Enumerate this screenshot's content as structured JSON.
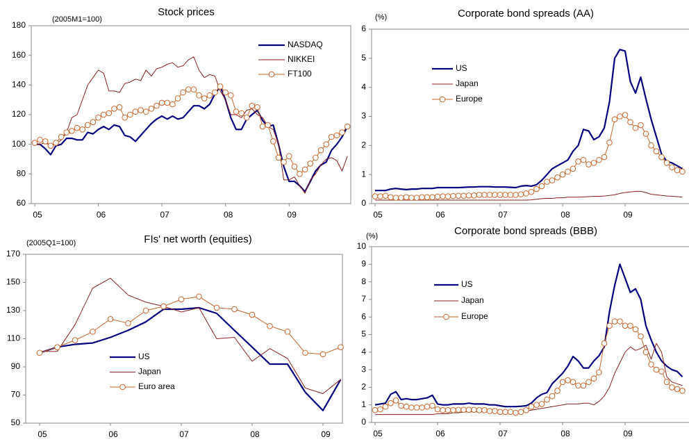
{
  "chart_data": [
    {
      "type": "line",
      "title": "Stock prices",
      "unit_note": "(2005M1=100)",
      "categories": [
        "05",
        null,
        null,
        null,
        null,
        null,
        null,
        null,
        null,
        null,
        null,
        null,
        "06",
        null,
        null,
        null,
        null,
        null,
        null,
        null,
        null,
        null,
        null,
        null,
        "07",
        null,
        null,
        null,
        null,
        null,
        null,
        null,
        null,
        null,
        null,
        null,
        "08",
        null,
        null,
        null,
        null,
        null,
        null,
        null,
        null,
        null,
        null,
        null,
        "09",
        null,
        null,
        null,
        null,
        null,
        null,
        null,
        null,
        null,
        null,
        null
      ],
      "ylim": [
        60,
        180
      ],
      "yticks": [
        60,
        80,
        100,
        120,
        140,
        160,
        180
      ],
      "series": [
        {
          "name": "NASDAQ",
          "color": "#00007f",
          "width": 2.2,
          "marker": "none",
          "values": [
            100,
            100,
            97,
            93,
            99,
            100,
            104,
            104,
            103,
            103,
            108,
            107,
            110,
            112,
            110,
            113,
            112,
            106,
            105,
            102,
            106,
            110,
            114,
            117,
            119,
            117,
            119,
            117,
            118,
            122,
            126,
            126,
            124,
            127,
            134,
            139,
            130,
            118,
            110,
            110,
            117,
            120,
            123,
            116,
            112,
            113,
            100,
            85,
            75,
            75,
            72,
            68,
            75,
            82,
            86,
            88,
            96,
            100,
            105,
            112
          ]
        },
        {
          "name": "NIKKEI",
          "color": "#8b1f1f",
          "width": 1,
          "marker": "none",
          "values": [
            100,
            100,
            101,
            99,
            100,
            103,
            108,
            118,
            120,
            130,
            140,
            145,
            150,
            148,
            136,
            136,
            135,
            141,
            142,
            144,
            143,
            150,
            146,
            151,
            152,
            154,
            155,
            152,
            153,
            157,
            159,
            150,
            145,
            147,
            146,
            136,
            130,
            120,
            120,
            118,
            123,
            124,
            120,
            118,
            112,
            110,
            100,
            76,
            76,
            78,
            72,
            67,
            76,
            80,
            86,
            90,
            91,
            89,
            82,
            92
          ]
        },
        {
          "name": "FT100",
          "color": "#c8642a",
          "width": 1,
          "marker": "circle",
          "values": [
            101,
            103,
            102,
            99,
            101,
            105,
            108,
            109,
            111,
            110,
            113,
            115,
            118,
            120,
            121,
            124,
            125,
            118,
            120,
            122,
            123,
            122,
            124,
            126,
            128,
            128,
            127,
            131,
            135,
            137,
            137,
            133,
            131,
            133,
            135,
            139,
            135,
            133,
            122,
            121,
            118,
            126,
            125,
            112,
            113,
            102,
            91,
            88,
            92,
            85,
            80,
            83,
            87,
            91,
            96,
            100,
            105,
            106,
            108,
            112
          ]
        }
      ]
    },
    {
      "type": "line",
      "title": "Corporate bond spreads (AA)",
      "unit_note": "(%)",
      "categories": [
        "05",
        null,
        null,
        null,
        null,
        null,
        null,
        null,
        null,
        null,
        null,
        null,
        "06",
        null,
        null,
        null,
        null,
        null,
        null,
        null,
        null,
        null,
        null,
        null,
        "07",
        null,
        null,
        null,
        null,
        null,
        null,
        null,
        null,
        null,
        null,
        null,
        "08",
        null,
        null,
        null,
        null,
        null,
        null,
        null,
        null,
        null,
        null,
        null,
        "09",
        null,
        null,
        null,
        null,
        null,
        null,
        null,
        null,
        null,
        null,
        null
      ],
      "ylim": [
        0,
        6
      ],
      "yticks": [
        0,
        1,
        2,
        3,
        4,
        5,
        6
      ],
      "series": [
        {
          "name": "US",
          "color": "#00007f",
          "width": 2.2,
          "marker": "none",
          "values": [
            0.45,
            0.45,
            0.45,
            0.5,
            0.52,
            0.5,
            0.48,
            0.5,
            0.5,
            0.52,
            0.52,
            0.52,
            0.55,
            0.55,
            0.55,
            0.55,
            0.55,
            0.56,
            0.57,
            0.57,
            0.58,
            0.58,
            0.58,
            0.57,
            0.57,
            0.57,
            0.56,
            0.55,
            0.6,
            0.62,
            0.6,
            0.65,
            0.8,
            1.0,
            1.2,
            1.3,
            1.4,
            1.5,
            1.8,
            2.0,
            2.55,
            2.5,
            2.2,
            2.3,
            2.6,
            3.5,
            5.0,
            5.3,
            5.25,
            4.2,
            3.8,
            4.35,
            3.6,
            2.9,
            2.3,
            1.7,
            1.45,
            1.4,
            1.3,
            1.2
          ]
        },
        {
          "name": "Japan",
          "color": "#8b1f1f",
          "width": 1,
          "marker": "none",
          "values": [
            0.12,
            0.12,
            0.12,
            0.12,
            0.12,
            0.12,
            0.12,
            0.12,
            0.12,
            0.12,
            0.12,
            0.12,
            0.12,
            0.12,
            0.12,
            0.12,
            0.12,
            0.12,
            0.12,
            0.12,
            0.12,
            0.12,
            0.12,
            0.12,
            0.12,
            0.12,
            0.12,
            0.12,
            0.12,
            0.12,
            0.13,
            0.15,
            0.17,
            0.18,
            0.18,
            0.2,
            0.2,
            0.22,
            0.22,
            0.22,
            0.23,
            0.24,
            0.25,
            0.25,
            0.26,
            0.28,
            0.3,
            0.35,
            0.38,
            0.4,
            0.42,
            0.42,
            0.38,
            0.32,
            0.3,
            0.28,
            0.26,
            0.25,
            0.24,
            0.22
          ]
        },
        {
          "name": "Europe",
          "color": "#c8642a",
          "width": 1,
          "marker": "circle",
          "values": [
            0.25,
            0.25,
            0.27,
            0.22,
            0.2,
            0.2,
            0.22,
            0.2,
            0.2,
            0.22,
            0.22,
            0.22,
            0.24,
            0.25,
            0.25,
            0.26,
            0.27,
            0.27,
            0.28,
            0.28,
            0.3,
            0.3,
            0.3,
            0.3,
            0.3,
            0.3,
            0.3,
            0.3,
            0.32,
            0.35,
            0.4,
            0.5,
            0.6,
            0.75,
            0.8,
            0.9,
            1.0,
            1.1,
            1.2,
            1.45,
            1.5,
            1.35,
            1.4,
            1.5,
            1.6,
            2.1,
            2.9,
            3.0,
            3.05,
            2.8,
            2.6,
            2.7,
            2.4,
            2.0,
            1.8,
            1.6,
            1.4,
            1.25,
            1.15,
            1.1
          ]
        }
      ]
    },
    {
      "type": "line",
      "title": "FIs' net worth (equities)",
      "unit_note": "(2005Q1=100)",
      "categories": [
        "05",
        null,
        null,
        null,
        "06",
        null,
        null,
        null,
        "07",
        null,
        null,
        null,
        "08",
        null,
        null,
        null,
        "09",
        null
      ],
      "ylim": [
        50,
        170
      ],
      "yticks": [
        50,
        70,
        90,
        110,
        130,
        150,
        170
      ],
      "series": [
        {
          "name": "US",
          "color": "#00007f",
          "width": 2.2,
          "marker": "none",
          "values": [
            100,
            104,
            106,
            107,
            111,
            116,
            122,
            131,
            131,
            132,
            128,
            116,
            104,
            92,
            92,
            72,
            59,
            81
          ]
        },
        {
          "name": "Japan",
          "color": "#8b1f1f",
          "width": 1,
          "marker": "none",
          "values": [
            101,
            101,
            120,
            146,
            153,
            141,
            136,
            133,
            129,
            132,
            110,
            111,
            94,
            103,
            96,
            75,
            71,
            81
          ]
        },
        {
          "name": "Euro area",
          "color": "#c8642a",
          "width": 1,
          "marker": "circle",
          "values": [
            100,
            104,
            109,
            115,
            124,
            121,
            130,
            133,
            138,
            140,
            132,
            131,
            127,
            119,
            115,
            100,
            99,
            104
          ]
        }
      ]
    },
    {
      "type": "line",
      "title": "Corporate bond spreads (BBB)",
      "unit_note": "(%)",
      "categories": [
        "05",
        null,
        null,
        null,
        null,
        null,
        null,
        null,
        null,
        null,
        null,
        null,
        "06",
        null,
        null,
        null,
        null,
        null,
        null,
        null,
        null,
        null,
        null,
        null,
        "07",
        null,
        null,
        null,
        null,
        null,
        null,
        null,
        null,
        null,
        null,
        null,
        "08",
        null,
        null,
        null,
        null,
        null,
        null,
        null,
        null,
        null,
        null,
        null,
        "09",
        null,
        null,
        null,
        null,
        null,
        null,
        null,
        null,
        null,
        null,
        null
      ],
      "ylim": [
        0,
        10
      ],
      "yticks": [
        0,
        1,
        2,
        3,
        4,
        5,
        6,
        7,
        8,
        9,
        10
      ],
      "series": [
        {
          "name": "US",
          "color": "#00007f",
          "width": 2.2,
          "marker": "none",
          "values": [
            1.0,
            1.05,
            1.1,
            1.6,
            1.75,
            1.3,
            1.35,
            1.3,
            1.3,
            1.35,
            1.4,
            1.55,
            1.05,
            1.0,
            1.0,
            1.05,
            1.05,
            1.05,
            1.1,
            1.05,
            1.05,
            1.05,
            1.0,
            1.0,
            0.95,
            0.9,
            0.9,
            0.9,
            0.92,
            0.95,
            1.1,
            1.4,
            1.6,
            1.7,
            2.2,
            2.5,
            2.8,
            3.2,
            3.75,
            3.5,
            3.1,
            3.1,
            3.5,
            3.8,
            4.3,
            6.3,
            7.8,
            9.0,
            8.2,
            7.4,
            7.6,
            7.0,
            5.5,
            4.7,
            4.0,
            3.5,
            3.2,
            3.0,
            2.9,
            2.6
          ]
        },
        {
          "name": "Japan",
          "color": "#8b1f1f",
          "width": 1,
          "marker": "none",
          "values": [
            0.45,
            0.45,
            0.45,
            0.45,
            0.45,
            0.45,
            0.45,
            0.45,
            0.45,
            0.45,
            0.45,
            0.45,
            0.5,
            0.5,
            0.5,
            0.55,
            0.55,
            0.6,
            0.6,
            0.6,
            0.6,
            0.6,
            0.6,
            0.6,
            0.6,
            0.6,
            0.6,
            0.6,
            0.65,
            0.65,
            0.7,
            0.75,
            0.8,
            0.85,
            0.9,
            0.95,
            1.0,
            1.05,
            1.05,
            1.05,
            1.1,
            1.1,
            1.0,
            1.2,
            1.5,
            2.0,
            2.8,
            3.4,
            4.0,
            4.3,
            4.1,
            4.2,
            4.4,
            3.6,
            4.5,
            4.0,
            2.6,
            2.3,
            2.2,
            2.1
          ]
        },
        {
          "name": "Europe",
          "color": "#c8642a",
          "width": 1,
          "marker": "circle",
          "values": [
            0.7,
            0.75,
            0.9,
            1.1,
            1.25,
            0.95,
            0.9,
            0.85,
            0.85,
            0.85,
            0.9,
            0.95,
            0.75,
            0.7,
            0.7,
            0.7,
            0.72,
            0.72,
            0.72,
            0.72,
            0.7,
            0.7,
            0.65,
            0.65,
            0.6,
            0.6,
            0.6,
            0.55,
            0.6,
            0.7,
            0.9,
            1.0,
            1.05,
            1.3,
            1.5,
            1.8,
            2.3,
            2.4,
            2.3,
            2.1,
            2.1,
            2.3,
            2.5,
            2.85,
            4.5,
            5.5,
            5.75,
            5.75,
            5.5,
            5.5,
            5.3,
            4.9,
            4.0,
            3.3,
            3.0,
            2.9,
            2.3,
            2.0,
            1.9,
            1.8
          ]
        }
      ]
    }
  ]
}
